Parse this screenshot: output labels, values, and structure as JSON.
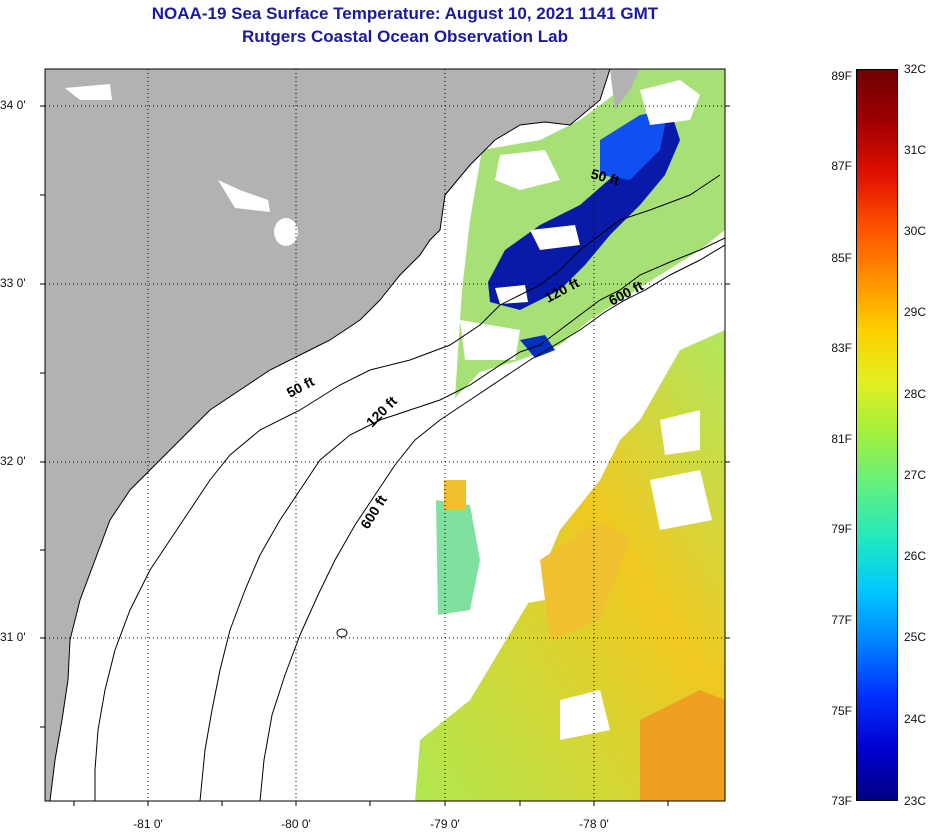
{
  "header": {
    "title_line1": "NOAA-19 Sea Surface Temperature:  August 10, 2021 1141 GMT",
    "title_line2": "Rutgers Coastal Ocean Observation Lab"
  },
  "axes": {
    "lat_ticks": [
      {
        "value": 34,
        "label": "34 0'"
      },
      {
        "value": 33,
        "label": "33 0'"
      },
      {
        "value": 32,
        "label": "32 0'"
      },
      {
        "value": 31,
        "label": "31 0'"
      }
    ],
    "lon_ticks": [
      {
        "value": -81,
        "label": "-81 0'"
      },
      {
        "value": -80,
        "label": "-80 0'"
      },
      {
        "value": -79,
        "label": "-79 0'"
      },
      {
        "value": -78,
        "label": "-78 0'"
      }
    ]
  },
  "map": {
    "land_color": "#b2b2b2",
    "no_data_color": "#ffffff",
    "contours": [
      {
        "name": "contour-50ft",
        "label": "50 ft"
      },
      {
        "name": "contour-120ft",
        "label": "120 ft"
      },
      {
        "name": "contour-600ft",
        "label": "600 ft"
      }
    ],
    "contour_labels": [
      {
        "text": "50 ft",
        "id": "c50a"
      },
      {
        "text": "120 ft",
        "id": "c120a"
      },
      {
        "text": "600 ft",
        "id": "c600a"
      },
      {
        "text": "50 ft",
        "id": "c50b"
      },
      {
        "text": "120 ft",
        "id": "c120b"
      },
      {
        "text": "600 ft",
        "id": "c600b"
      }
    ]
  },
  "colorbar": {
    "f_labels": [
      "89F",
      "87F",
      "85F",
      "83F",
      "81F",
      "79F",
      "77F",
      "75F",
      "73F"
    ],
    "c_labels": [
      "32C",
      "31C",
      "30C",
      "29C",
      "28C",
      "27C",
      "26C",
      "25C",
      "24C",
      "23C"
    ],
    "colors": [
      "#000080",
      "#0000d0",
      "#0030ff",
      "#0080ff",
      "#00c8ff",
      "#20e8c0",
      "#60f080",
      "#a0f040",
      "#e0f020",
      "#ffd000",
      "#ff9000",
      "#ff5000",
      "#e01000",
      "#a00000",
      "#700000"
    ]
  }
}
